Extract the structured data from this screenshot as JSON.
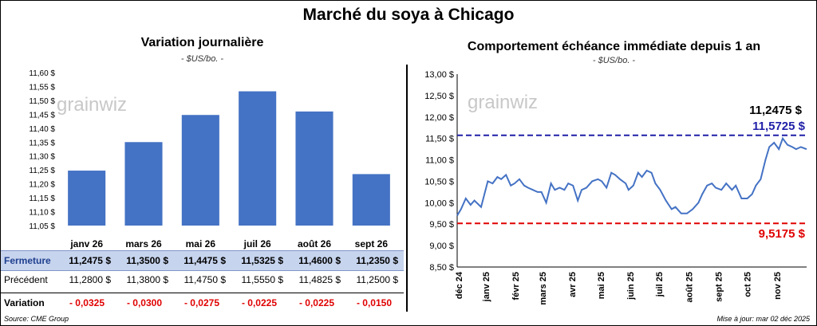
{
  "main_title": "Marché du soya à Chicago",
  "watermark": "grainwiz",
  "left": {
    "title": "Variation journalière",
    "subtitle": "- $US/bo. -"
  },
  "right": {
    "title": "Comportement échéance immédiate depuis 1 an",
    "subtitle": "- $US/bo. -",
    "last_label": "11,2475 $",
    "high_label": "11,5725 $",
    "low_label": "9,5175 $"
  },
  "table": {
    "close_label": "Fermeture",
    "prev_label": "Précédent",
    "var_label": "Variation",
    "close": [
      "11,2475  $",
      "11,3500  $",
      "11,4475  $",
      "11,5325  $",
      "11,4600  $",
      "11,2350  $"
    ],
    "prev": [
      "11,2800  $",
      "11,3800  $",
      "11,4750  $",
      "11,5550  $",
      "11,4825  $",
      "11,2500  $"
    ],
    "var": [
      "- 0,0325",
      "- 0,0300",
      "- 0,0275",
      "- 0,0225",
      "- 0,0225",
      "- 0,0150"
    ]
  },
  "footer": {
    "source": "Source: CME Group",
    "updated": "Mise à jour: mar 02 déc 2025"
  },
  "colors": {
    "bar": "#4472c4",
    "line": "#4472c4",
    "high": "#1f1fa8",
    "low": "#e00000",
    "table_band": "#c7d4ee"
  },
  "chart_data": [
    {
      "type": "bar",
      "title": "Variation journalière",
      "subtitle": "- $US/bo. -",
      "categories": [
        "janv 26",
        "mars 26",
        "mai 26",
        "juil 26",
        "août 26",
        "sept 26"
      ],
      "values": [
        11.2475,
        11.35,
        11.4475,
        11.5325,
        11.46,
        11.235
      ],
      "ylim": [
        11.05,
        11.6
      ],
      "yticks": [
        11.05,
        11.1,
        11.15,
        11.2,
        11.25,
        11.3,
        11.35,
        11.4,
        11.45,
        11.5,
        11.55,
        11.6
      ],
      "ytick_labels": [
        "11,05 $",
        "11,10 $",
        "11,15 $",
        "11,20 $",
        "11,25 $",
        "11,30 $",
        "11,35 $",
        "11,40 $",
        "11,45 $",
        "11,50 $",
        "11,55 $",
        "11,60 $"
      ]
    },
    {
      "type": "line",
      "title": "Comportement échéance immédiate depuis 1 an",
      "subtitle": "- $US/bo. -",
      "x_start": "2024-12-02",
      "x_end": "2025-12-02",
      "xticks": [
        "2024-12-01",
        "2025-01-01",
        "2025-02-01",
        "2025-03-01",
        "2025-04-01",
        "2025-05-01",
        "2025-06-01",
        "2025-07-01",
        "2025-08-01",
        "2025-09-01",
        "2025-10-01",
        "2025-11-01"
      ],
      "xtick_labels": [
        "déc 24",
        "janv 25",
        "févr 25",
        "mars 25",
        "avr 25",
        "mai 25",
        "juin 25",
        "juil 25",
        "août 25",
        "sept 25",
        "oct 25",
        "nov 25"
      ],
      "ylim": [
        8.5,
        13.0
      ],
      "yticks": [
        8.5,
        9.0,
        9.5,
        10.0,
        10.5,
        11.0,
        11.5,
        12.0,
        12.5,
        13.0
      ],
      "ytick_labels": [
        "8,50 $",
        "9,00 $",
        "9,50 $",
        "10,00 $",
        "10,50 $",
        "11,00 $",
        "11,50 $",
        "12,00 $",
        "12,50 $",
        "13,00 $"
      ],
      "hlines": [
        {
          "name": "11,5725 $",
          "value": 11.5725,
          "color": "#1f1fa8"
        },
        {
          "name": "9,5175 $",
          "value": 9.5175,
          "color": "#e00000"
        }
      ],
      "series": [
        {
          "x": [
            "2024-12-02",
            "2024-12-06",
            "2024-12-11",
            "2024-12-16",
            "2024-12-20",
            "2024-12-27",
            "2025-01-03",
            "2025-01-08",
            "2025-01-13",
            "2025-01-17",
            "2025-01-22",
            "2025-01-27",
            "2025-01-31",
            "2025-02-05",
            "2025-02-10",
            "2025-02-14",
            "2025-02-19",
            "2025-02-24",
            "2025-02-28",
            "2025-03-05",
            "2025-03-10",
            "2025-03-14",
            "2025-03-19",
            "2025-03-24",
            "2025-03-28",
            "2025-04-02",
            "2025-04-07",
            "2025-04-11",
            "2025-04-16",
            "2025-04-22",
            "2025-04-28",
            "2025-05-02",
            "2025-05-07",
            "2025-05-12",
            "2025-05-16",
            "2025-05-21",
            "2025-05-27",
            "2025-05-30",
            "2025-06-04",
            "2025-06-09",
            "2025-06-13",
            "2025-06-18",
            "2025-06-23",
            "2025-06-27",
            "2025-07-02",
            "2025-07-08",
            "2025-07-14",
            "2025-07-18",
            "2025-07-24",
            "2025-07-30",
            "2025-08-05",
            "2025-08-11",
            "2025-08-15",
            "2025-08-20",
            "2025-08-25",
            "2025-08-29",
            "2025-09-04",
            "2025-09-09",
            "2025-09-15",
            "2025-09-19",
            "2025-09-25",
            "2025-10-01",
            "2025-10-06",
            "2025-10-10",
            "2025-10-15",
            "2025-10-20",
            "2025-10-24",
            "2025-10-29",
            "2025-11-03",
            "2025-11-07",
            "2025-11-12",
            "2025-11-17",
            "2025-11-21",
            "2025-11-26",
            "2025-12-02"
          ],
          "values": [
            9.7,
            9.85,
            10.1,
            9.95,
            10.05,
            9.9,
            10.5,
            10.45,
            10.6,
            10.55,
            10.65,
            10.4,
            10.45,
            10.55,
            10.4,
            10.35,
            10.3,
            10.25,
            10.25,
            10.0,
            10.45,
            10.3,
            10.35,
            10.3,
            10.45,
            10.4,
            10.05,
            10.3,
            10.35,
            10.5,
            10.55,
            10.5,
            10.35,
            10.7,
            10.65,
            10.55,
            10.45,
            10.3,
            10.4,
            10.7,
            10.6,
            10.75,
            10.7,
            10.45,
            10.3,
            10.05,
            9.85,
            9.9,
            9.75,
            9.75,
            9.85,
            10.0,
            10.2,
            10.4,
            10.45,
            10.35,
            10.3,
            10.45,
            10.3,
            10.4,
            10.1,
            10.1,
            10.2,
            10.4,
            10.55,
            11.0,
            11.3,
            11.4,
            11.25,
            11.5,
            11.35,
            11.3,
            11.25,
            11.3,
            11.2475
          ]
        }
      ]
    }
  ]
}
